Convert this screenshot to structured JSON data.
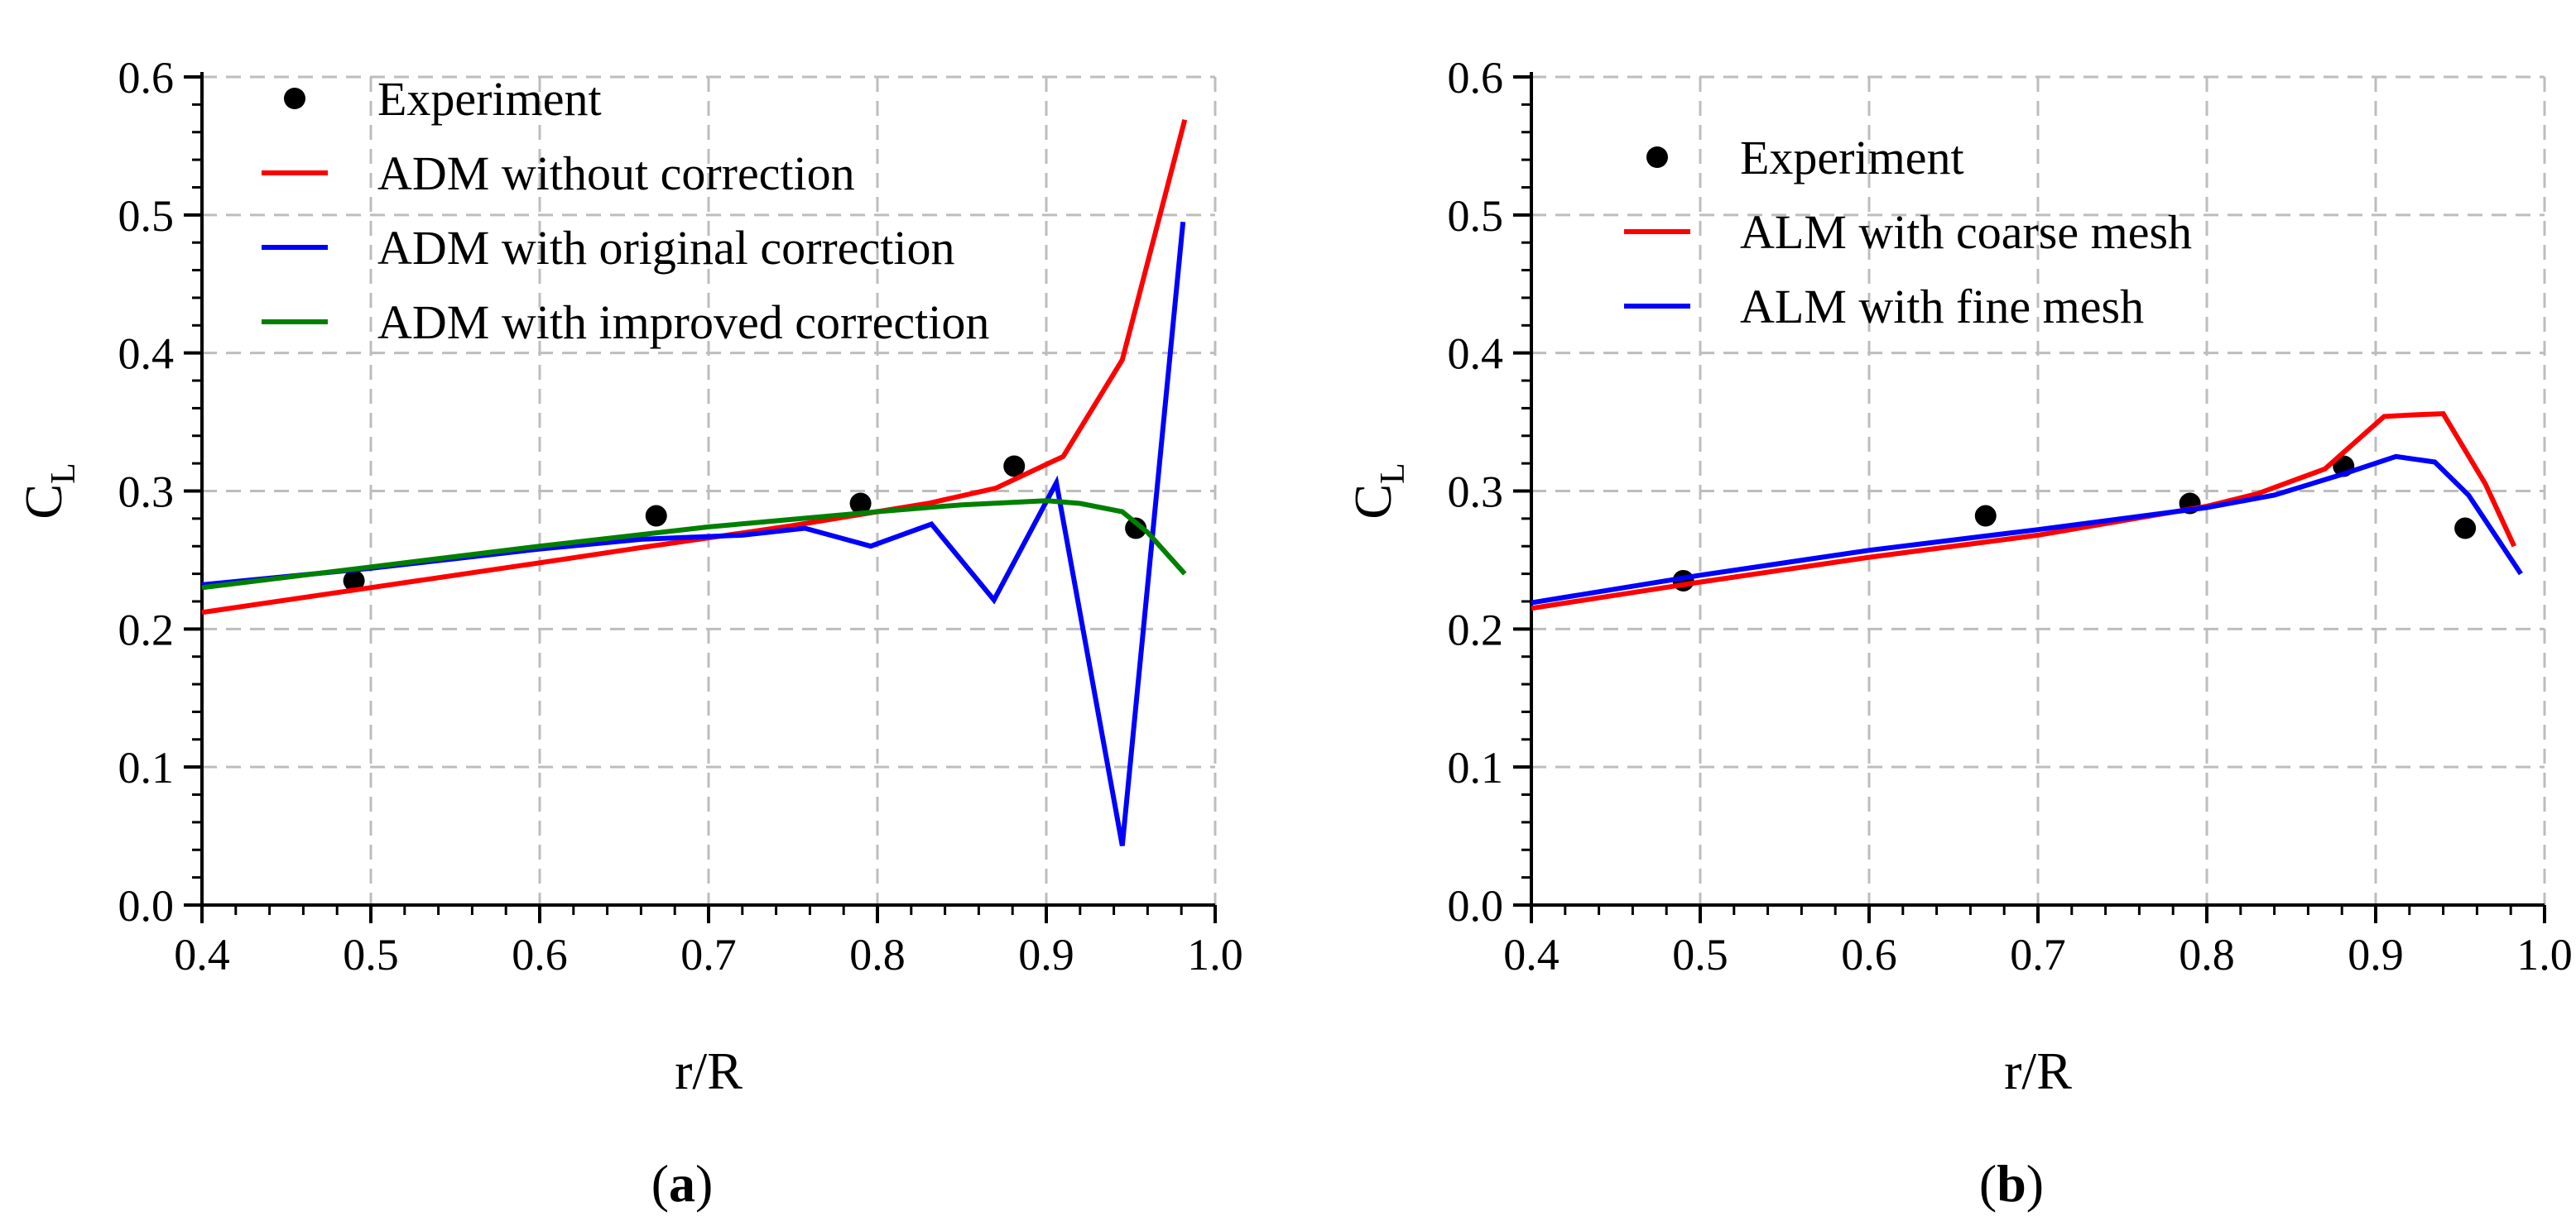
{
  "chart_data": [
    {
      "type": "line",
      "panel_label": "(a)",
      "xlabel": "r/R",
      "ylabel": "C",
      "ylabel_sub": "L",
      "xlim": [
        0.4,
        1.0
      ],
      "ylim": [
        0.0,
        0.6
      ],
      "xticks": [
        0.4,
        0.5,
        0.6,
        0.7,
        0.8,
        0.9,
        1.0
      ],
      "yticks": [
        0.0,
        0.1,
        0.2,
        0.3,
        0.4,
        0.5,
        0.6
      ],
      "xtick_labels": [
        "0.4",
        "0.5",
        "0.6",
        "0.7",
        "0.8",
        "0.9",
        "1.0"
      ],
      "ytick_labels": [
        "0.0",
        "0.1",
        "0.2",
        "0.3",
        "0.4",
        "0.5",
        "0.6"
      ],
      "grid": true,
      "legend_position": "top-left",
      "series": [
        {
          "name": "Experiment",
          "kind": "scatter",
          "color": "#000000",
          "x": [
            0.49,
            0.669,
            0.79,
            0.881,
            0.953
          ],
          "y": [
            0.235,
            0.282,
            0.291,
            0.318,
            0.273
          ]
        },
        {
          "name": "ADM without correction",
          "kind": "line",
          "color": "#ff0000",
          "x": [
            0.4,
            0.5,
            0.6,
            0.66,
            0.7,
            0.75,
            0.8,
            0.83,
            0.87,
            0.91,
            0.945,
            0.982
          ],
          "y": [
            0.212,
            0.23,
            0.248,
            0.259,
            0.266,
            0.275,
            0.285,
            0.291,
            0.302,
            0.325,
            0.395,
            0.569
          ]
        },
        {
          "name": "ADM with original correction",
          "kind": "line",
          "color": "#0000ff",
          "x": [
            0.4,
            0.5,
            0.6,
            0.66,
            0.72,
            0.757,
            0.796,
            0.832,
            0.869,
            0.906,
            0.945,
            0.981
          ],
          "y": [
            0.232,
            0.244,
            0.258,
            0.265,
            0.268,
            0.273,
            0.26,
            0.276,
            0.221,
            0.306,
            0.043,
            0.495
          ]
        },
        {
          "name": "ADM with improved correction",
          "kind": "line",
          "color": "#008000",
          "x": [
            0.4,
            0.5,
            0.6,
            0.7,
            0.8,
            0.85,
            0.9,
            0.92,
            0.945,
            0.96,
            0.982
          ],
          "y": [
            0.23,
            0.245,
            0.26,
            0.274,
            0.285,
            0.29,
            0.293,
            0.291,
            0.285,
            0.27,
            0.24
          ]
        }
      ]
    },
    {
      "type": "line",
      "panel_label": "(b)",
      "xlabel": "r/R",
      "ylabel": "C",
      "ylabel_sub": "L",
      "xlim": [
        0.4,
        1.0
      ],
      "ylim": [
        0.0,
        0.6
      ],
      "xticks": [
        0.4,
        0.5,
        0.6,
        0.7,
        0.8,
        0.9,
        1.0
      ],
      "yticks": [
        0.0,
        0.1,
        0.2,
        0.3,
        0.4,
        0.5,
        0.6
      ],
      "xtick_labels": [
        "0.4",
        "0.5",
        "0.6",
        "0.7",
        "0.8",
        "0.9",
        "1.0"
      ],
      "ytick_labels": [
        "0.0",
        "0.1",
        "0.2",
        "0.3",
        "0.4",
        "0.5",
        "0.6"
      ],
      "grid": true,
      "legend_position": "top-left",
      "series": [
        {
          "name": "Experiment",
          "kind": "scatter",
          "color": "#000000",
          "x": [
            0.49,
            0.669,
            0.79,
            0.881,
            0.953
          ],
          "y": [
            0.235,
            0.282,
            0.291,
            0.318,
            0.273
          ]
        },
        {
          "name": "ALM with coarse mesh",
          "kind": "line",
          "color": "#ff0000",
          "x": [
            0.4,
            0.5,
            0.6,
            0.7,
            0.8,
            0.83,
            0.87,
            0.905,
            0.92,
            0.94,
            0.965,
            0.982
          ],
          "y": [
            0.215,
            0.234,
            0.252,
            0.268,
            0.289,
            0.298,
            0.316,
            0.354,
            0.355,
            0.356,
            0.305,
            0.26
          ]
        },
        {
          "name": "ALM with fine mesh",
          "kind": "line",
          "color": "#0000ff",
          "x": [
            0.4,
            0.5,
            0.6,
            0.7,
            0.8,
            0.84,
            0.88,
            0.912,
            0.935,
            0.955,
            0.986
          ],
          "y": [
            0.219,
            0.239,
            0.257,
            0.272,
            0.288,
            0.297,
            0.312,
            0.325,
            0.321,
            0.297,
            0.24
          ]
        }
      ]
    }
  ]
}
